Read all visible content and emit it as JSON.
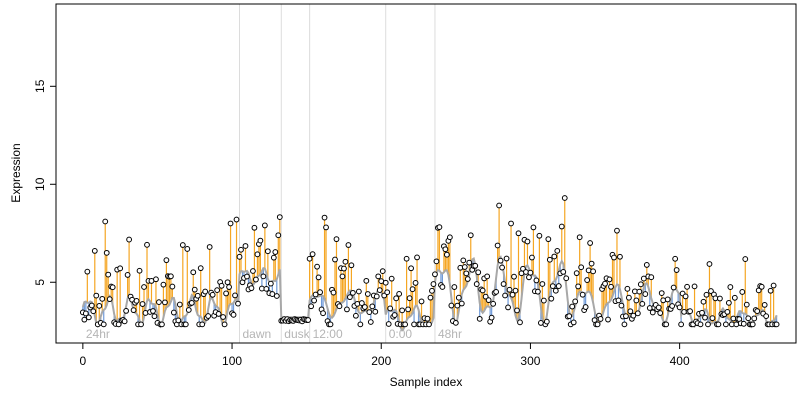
{
  "chart_data": {
    "type": "scatter",
    "title": "",
    "xlabel": "Sample index",
    "ylabel": "Expression",
    "xlim": [
      -18,
      478
    ],
    "ylim": [
      1.9,
      19.2
    ],
    "x_ticks": [
      0,
      100,
      200,
      300,
      400
    ],
    "y_ticks": [
      5,
      10,
      15
    ],
    "grid": false,
    "legend": "none",
    "colors": {
      "above_fit": "#f5a623",
      "below_fit": "#6f9ad8",
      "fit_line": "#a8a8a8",
      "points": "#000000",
      "phase_line": "#dcdcdc",
      "phase_text": "#b5b5b5"
    },
    "phases": [
      {
        "x": 0,
        "label": "24hr"
      },
      {
        "x": 105,
        "label": "dawn"
      },
      {
        "x": 133,
        "label": "dusk"
      },
      {
        "x": 152,
        "label": "12:00"
      },
      {
        "x": 203,
        "label": "0:00"
      },
      {
        "x": 236,
        "label": "48hr"
      }
    ],
    "segments": [
      {
        "x_start": 0,
        "x_end": 104,
        "base": 3.55,
        "amp": 0.6,
        "freq": 0.45
      },
      {
        "x_start": 105,
        "x_end": 132,
        "base": 5.3,
        "amp": 0.35,
        "freq": 0.5
      },
      {
        "x_start": 133,
        "x_end": 151,
        "base": 3.2,
        "amp": 0.02,
        "freq": 0.2
      },
      {
        "x_start": 152,
        "x_end": 202,
        "base": 3.9,
        "amp": 0.55,
        "freq": 0.3
      },
      {
        "x_start": 203,
        "x_end": 235,
        "base": 3.2,
        "amp": 0.5,
        "freq": 0.4
      },
      {
        "x_start": 236,
        "x_end": 330,
        "base": 4.6,
        "amp": 1.3,
        "freq": 0.32
      },
      {
        "x_start": 331,
        "x_end": 400,
        "base": 3.9,
        "amp": 0.8,
        "freq": 0.3
      },
      {
        "x_start": 401,
        "x_end": 465,
        "base": 3.2,
        "amp": 0.35,
        "freq": 0.5
      }
    ],
    "n_points": 466,
    "points_note_values": [
      [
        8,
        6.6
      ],
      [
        15,
        8.1
      ],
      [
        16,
        6.5
      ],
      [
        67,
        6.9
      ],
      [
        70,
        6.7
      ],
      [
        85,
        6.8
      ],
      [
        99,
        8.0
      ],
      [
        103,
        8.2
      ],
      [
        122,
        7.9
      ],
      [
        131,
        7.4
      ],
      [
        152,
        6.2
      ],
      [
        162,
        8.3
      ],
      [
        163,
        7.8
      ],
      [
        170,
        7.2
      ],
      [
        178,
        6.9
      ],
      [
        217,
        6.2
      ],
      [
        260,
        7.4
      ],
      [
        287,
        8.0
      ],
      [
        292,
        7.5
      ],
      [
        302,
        7.8
      ],
      [
        312,
        7.2
      ],
      [
        323,
        9.3
      ],
      [
        355,
        6.4
      ],
      [
        360,
        6.3
      ]
    ]
  }
}
